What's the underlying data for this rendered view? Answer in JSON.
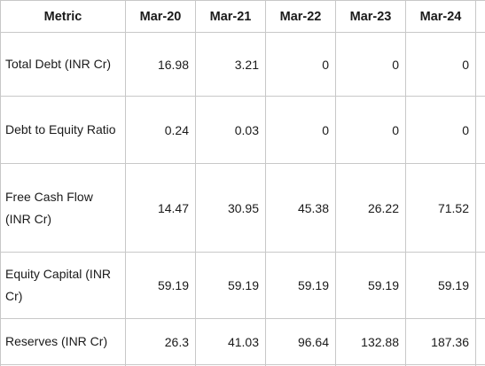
{
  "table": {
    "header": {
      "metric": "Metric",
      "years": [
        "Mar-20",
        "Mar-21",
        "Mar-22",
        "Mar-23",
        "Mar-24"
      ]
    },
    "rows": [
      {
        "label": "Total Debt (INR Cr)",
        "values": [
          "16.98",
          "3.21",
          "0",
          "0",
          "0"
        ]
      },
      {
        "label": "Debt to Equity Ratio",
        "values": [
          "0.24",
          "0.03",
          "0",
          "0",
          "0"
        ]
      },
      {
        "label": "Free Cash Flow (INR Cr)",
        "values": [
          "14.47",
          "30.95",
          "45.38",
          "26.22",
          "71.52"
        ]
      },
      {
        "label": "Equity Capital (INR Cr)",
        "values": [
          "59.19",
          "59.19",
          "59.19",
          "59.19",
          "59.19"
        ]
      },
      {
        "label": "Reserves (INR Cr)",
        "values": [
          "26.3",
          "41.03",
          "96.64",
          "132.88",
          "187.36"
        ]
      }
    ]
  }
}
